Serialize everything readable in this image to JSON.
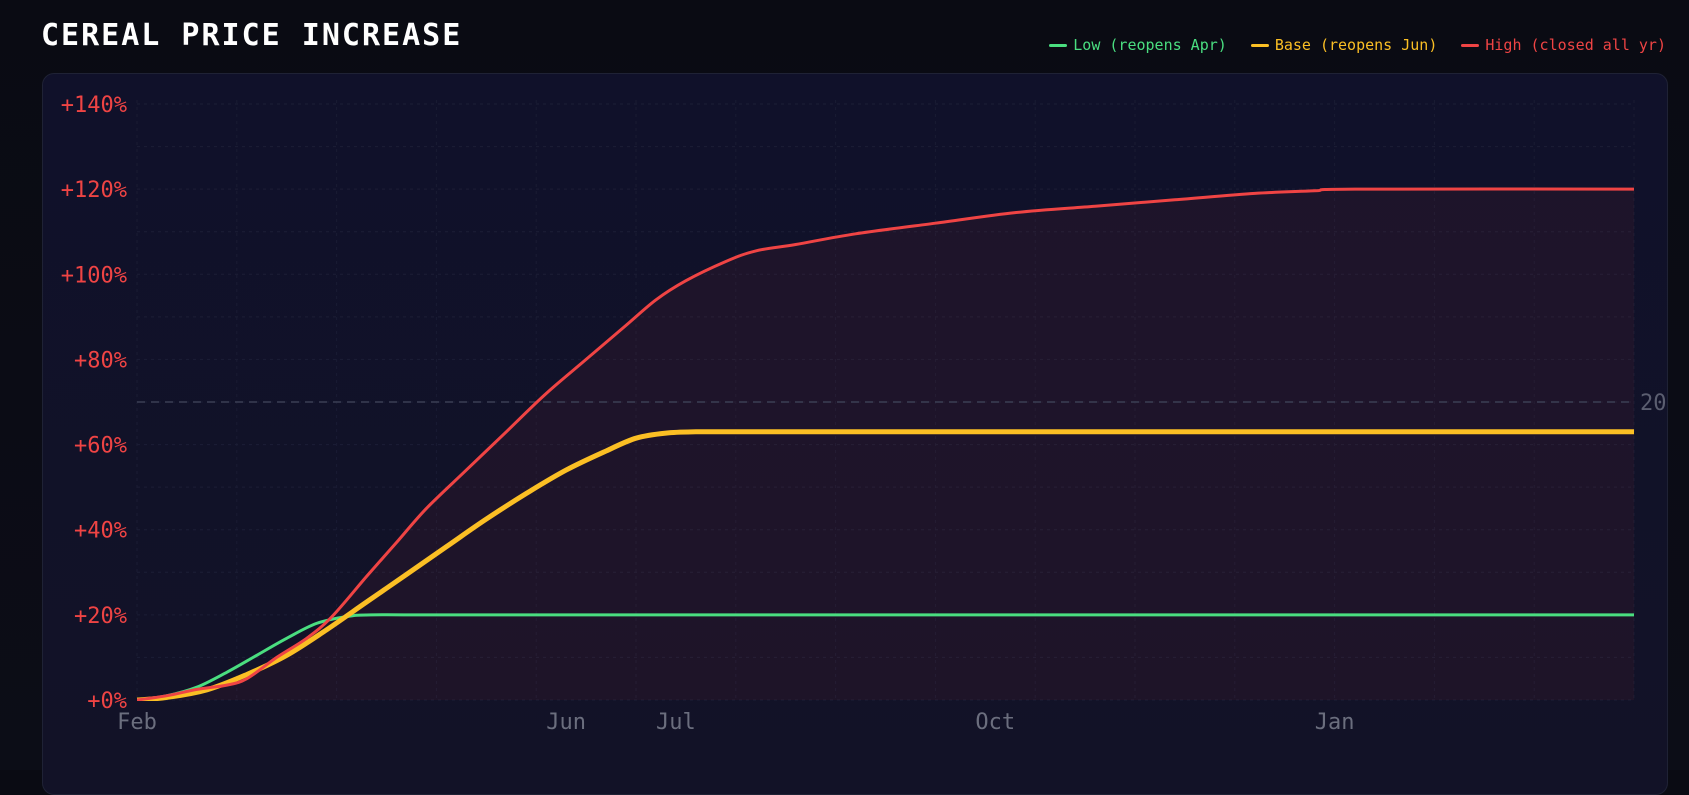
{
  "chart_data": {
    "type": "line",
    "title": "CEREAL PRICE INCREASE",
    "x_axis": {
      "ticks": [
        "Feb",
        "Jun",
        "Jul",
        "Oct",
        "Jan"
      ],
      "tick_positions_months": [
        0,
        4.3,
        5.4,
        8.6,
        12.0
      ],
      "range_months": [
        0,
        15
      ]
    },
    "y_axis": {
      "ticks": [
        "+0%",
        "+20%",
        "+40%",
        "+60%",
        "+80%",
        "+100%",
        "+120%",
        "+140%"
      ],
      "tick_values": [
        0,
        20,
        40,
        60,
        80,
        100,
        120,
        140
      ],
      "range": [
        0,
        140
      ]
    },
    "reference_line": {
      "value": 70,
      "label": "20"
    },
    "grid": true,
    "legend_position": "top-right",
    "series": [
      {
        "name": "Low (reopens Apr)",
        "color": "#4ade80",
        "stroke": 3,
        "points": [
          [
            0,
            0
          ],
          [
            0.3,
            1
          ],
          [
            0.6,
            3
          ],
          [
            0.9,
            6.5
          ],
          [
            1.2,
            10.5
          ],
          [
            1.5,
            14.5
          ],
          [
            1.8,
            18
          ],
          [
            2.1,
            19.6
          ],
          [
            2.35,
            20
          ],
          [
            3,
            20
          ],
          [
            6,
            20
          ],
          [
            9,
            20
          ],
          [
            12,
            20
          ],
          [
            15,
            20
          ]
        ]
      },
      {
        "name": "Base (reopens Jun)",
        "color": "#fbbf24",
        "stroke": 5,
        "points": [
          [
            0,
            0
          ],
          [
            0.3,
            0.6
          ],
          [
            0.7,
            2.4
          ],
          [
            1.1,
            6
          ],
          [
            1.5,
            10.5
          ],
          [
            1.9,
            16.5
          ],
          [
            2.3,
            23
          ],
          [
            2.7,
            29.5
          ],
          [
            3.1,
            36
          ],
          [
            3.5,
            42.5
          ],
          [
            3.9,
            48.5
          ],
          [
            4.3,
            54
          ],
          [
            4.7,
            58.5
          ],
          [
            5.0,
            61.5
          ],
          [
            5.3,
            62.7
          ],
          [
            5.6,
            63
          ],
          [
            6,
            63
          ],
          [
            9,
            63
          ],
          [
            12,
            63
          ],
          [
            15,
            63
          ]
        ]
      },
      {
        "name": "High (closed all yr)",
        "color": "#ef4444",
        "stroke": 3,
        "points": [
          [
            0,
            0
          ],
          [
            0.3,
            1
          ],
          [
            0.6,
            2.5
          ],
          [
            0.9,
            3.5
          ],
          [
            1.1,
            5
          ],
          [
            1.4,
            10
          ],
          [
            1.7,
            14.5
          ],
          [
            1.95,
            19.5
          ],
          [
            2.3,
            29
          ],
          [
            2.6,
            37
          ],
          [
            2.9,
            45
          ],
          [
            3.3,
            54
          ],
          [
            3.7,
            63
          ],
          [
            4.1,
            72
          ],
          [
            4.5,
            80
          ],
          [
            4.9,
            88
          ],
          [
            5.2,
            94
          ],
          [
            5.5,
            98.5
          ],
          [
            5.9,
            103
          ],
          [
            6.2,
            105.5
          ],
          [
            6.6,
            107
          ],
          [
            7.2,
            109.5
          ],
          [
            8,
            112
          ],
          [
            8.8,
            114.5
          ],
          [
            9.6,
            116
          ],
          [
            10.4,
            117.5
          ],
          [
            11.2,
            119
          ],
          [
            11.8,
            119.6
          ],
          [
            12.2,
            120
          ],
          [
            15,
            120
          ]
        ]
      }
    ]
  }
}
